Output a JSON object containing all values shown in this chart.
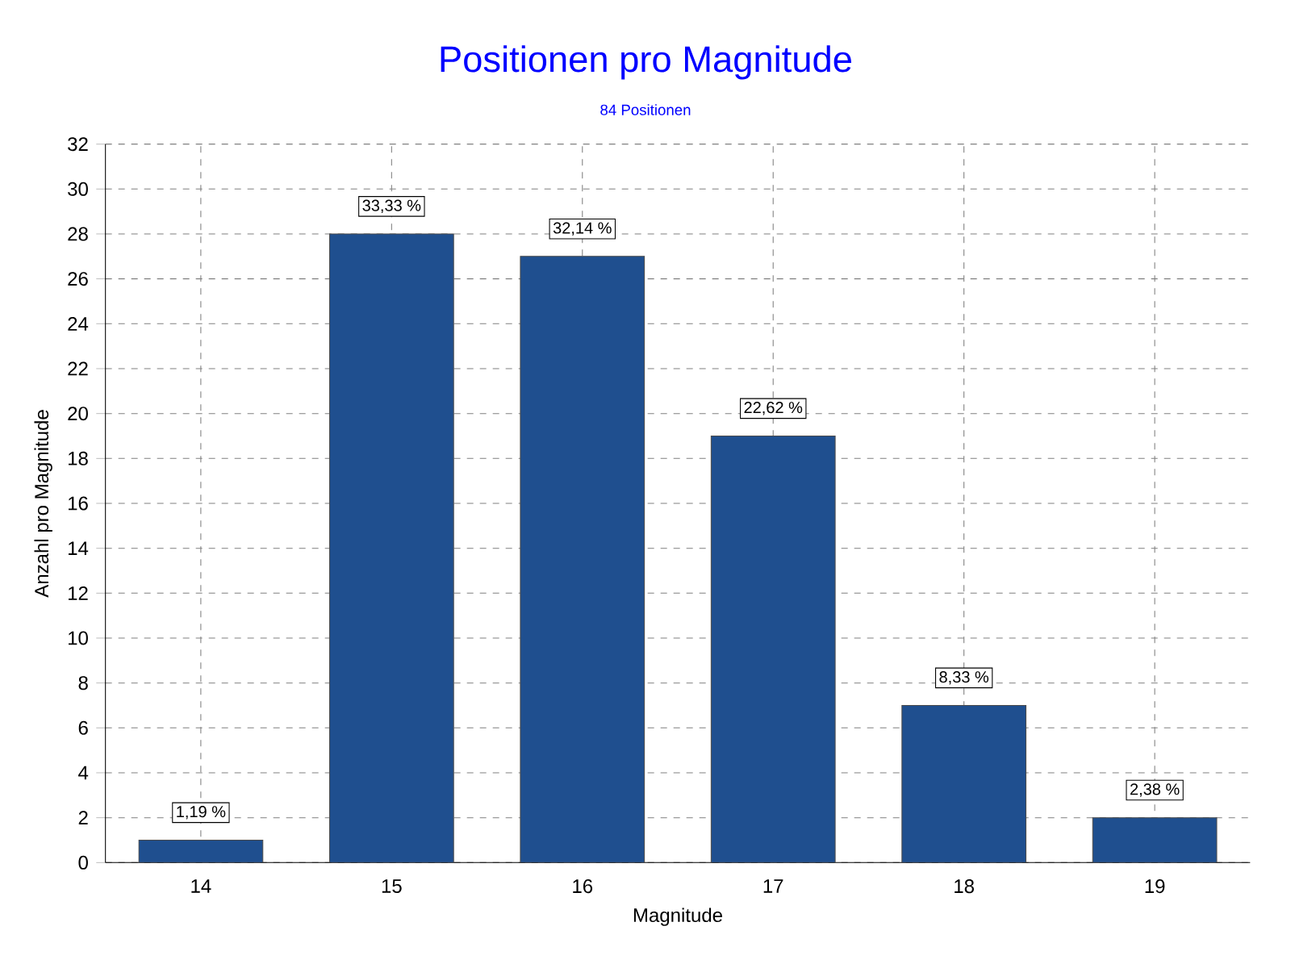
{
  "chart_data": {
    "type": "bar",
    "title": "Positionen pro Magnitude",
    "subtitle": "84 Positionen",
    "xlabel": "Magnitude",
    "ylabel": "Anzahl pro Magnitude",
    "categories": [
      "14",
      "15",
      "16",
      "17",
      "18",
      "19"
    ],
    "values": [
      1,
      28,
      27,
      19,
      7,
      2
    ],
    "annotations": [
      {
        "text": "1,19 %",
        "x": "14",
        "y": 1
      },
      {
        "text": "33,33 %",
        "x": "15",
        "y": 28
      },
      {
        "text": "32,14 %",
        "x": "16",
        "y": 27
      },
      {
        "text": "22,62 %",
        "x": "17",
        "y": 19
      },
      {
        "text": "8,33 %",
        "x": "18",
        "y": 7
      },
      {
        "text": "2,38 %",
        "x": "19",
        "y": 2
      }
    ],
    "color": "#1f4f8f",
    "ylim": [
      0,
      32
    ],
    "yticks": [
      0,
      2,
      4,
      6,
      8,
      10,
      12,
      14,
      16,
      18,
      20,
      22,
      24,
      26,
      28,
      30,
      32
    ],
    "grid": true
  }
}
